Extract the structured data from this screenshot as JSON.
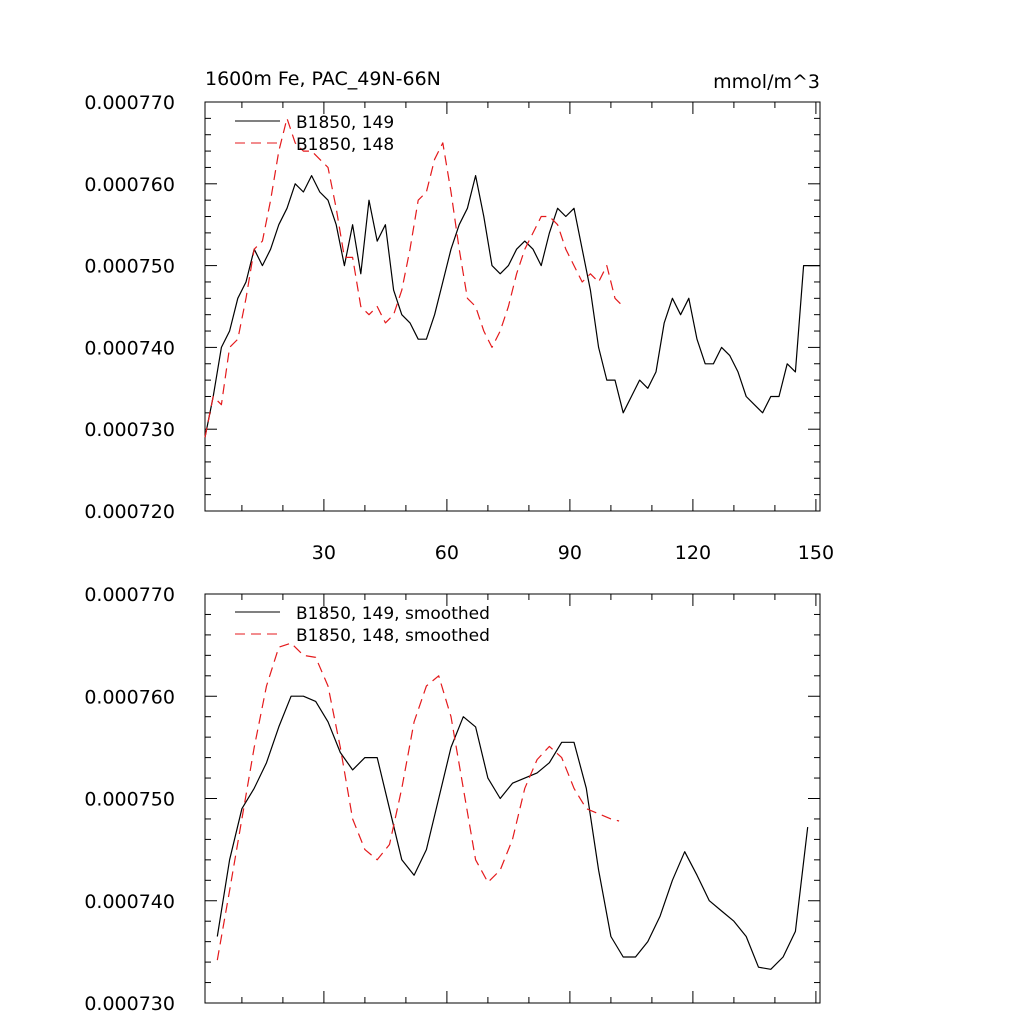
{
  "chart_data": [
    {
      "type": "line",
      "title": "1600m Fe, PAC_49N-66N",
      "units": "mmol/m^3",
      "ylim": [
        0.00072,
        0.00077
      ],
      "xlim": [
        1,
        151
      ],
      "yticks": [
        "0.000720",
        "0.000730",
        "0.000740",
        "0.000750",
        "0.000760",
        "0.000770"
      ],
      "xticks": [
        "30",
        "60",
        "90",
        "120",
        "150"
      ],
      "legend_position": "top-left",
      "series": [
        {
          "name": "B1850, 149",
          "color": "#000000",
          "dash": "solid",
          "x": [
            1,
            3,
            5,
            7,
            9,
            11,
            13,
            15,
            17,
            19,
            21,
            23,
            25,
            27,
            29,
            31,
            33,
            35,
            37,
            39,
            41,
            43,
            45,
            47,
            49,
            51,
            53,
            55,
            57,
            59,
            61,
            63,
            65,
            67,
            69,
            71,
            73,
            75,
            77,
            79,
            81,
            83,
            85,
            87,
            89,
            91,
            93,
            95,
            97,
            99,
            101,
            103,
            105,
            107,
            109,
            111,
            113,
            115,
            117,
            119,
            121,
            123,
            125,
            127,
            129,
            131,
            133,
            135,
            137,
            139,
            141,
            143,
            145,
            147,
            149,
            151
          ],
          "values": [
            0.000729,
            0.000734,
            0.00074,
            0.000742,
            0.000746,
            0.000748,
            0.000752,
            0.00075,
            0.000752,
            0.000755,
            0.000757,
            0.00076,
            0.000759,
            0.000761,
            0.000759,
            0.000758,
            0.000755,
            0.00075,
            0.000755,
            0.000749,
            0.000758,
            0.000753,
            0.000755,
            0.000747,
            0.000744,
            0.000743,
            0.000741,
            0.000741,
            0.000744,
            0.000748,
            0.000752,
            0.000755,
            0.000757,
            0.000761,
            0.000756,
            0.00075,
            0.000749,
            0.00075,
            0.000752,
            0.000753,
            0.000752,
            0.00075,
            0.000754,
            0.000757,
            0.000756,
            0.000757,
            0.000752,
            0.000747,
            0.00074,
            0.000736,
            0.000736,
            0.000732,
            0.000734,
            0.000736,
            0.000735,
            0.000737,
            0.000743,
            0.000746,
            0.000744,
            0.000746,
            0.000741,
            0.000738,
            0.000738,
            0.00074,
            0.000739,
            0.000737,
            0.000734,
            0.000733,
            0.000732,
            0.000734,
            0.000734,
            0.000738,
            0.000737,
            0.00075,
            0.00075,
            0.00075
          ]
        },
        {
          "name": "B1850, 148",
          "color": "#e41a1c",
          "dash": "10,6",
          "x": [
            1,
            3,
            5,
            7,
            9,
            11,
            13,
            15,
            17,
            19,
            21,
            23,
            25,
            27,
            29,
            31,
            33,
            35,
            37,
            39,
            41,
            43,
            45,
            47,
            49,
            51,
            53,
            55,
            57,
            59,
            61,
            63,
            65,
            67,
            69,
            71,
            73,
            75,
            77,
            79,
            81,
            83,
            85,
            87,
            89,
            91,
            93,
            95,
            97,
            99,
            101,
            103
          ],
          "values": [
            0.000729,
            0.000734,
            0.000733,
            0.00074,
            0.000741,
            0.000746,
            0.000752,
            0.000753,
            0.000758,
            0.000764,
            0.000768,
            0.000765,
            0.000764,
            0.000764,
            0.000763,
            0.000762,
            0.000757,
            0.000751,
            0.000751,
            0.000745,
            0.000744,
            0.000745,
            0.000743,
            0.000744,
            0.000747,
            0.000752,
            0.000758,
            0.000759,
            0.000763,
            0.000765,
            0.000759,
            0.000752,
            0.000746,
            0.000745,
            0.000742,
            0.00074,
            0.000742,
            0.000745,
            0.000749,
            0.000752,
            0.000754,
            0.000756,
            0.000756,
            0.000755,
            0.000752,
            0.00075,
            0.000748,
            0.000749,
            0.000748,
            0.00075,
            0.000746,
            0.000745
          ]
        }
      ]
    },
    {
      "type": "line",
      "title": "",
      "ylim": [
        0.00073,
        0.00077
      ],
      "xlim": [
        1,
        151
      ],
      "yticks": [
        "0.000730",
        "0.000740",
        "0.000750",
        "0.000760",
        "0.000770"
      ],
      "xticks": [],
      "legend_position": "top-left",
      "series": [
        {
          "name": "B1850, 149, smoothed",
          "color": "#000000",
          "dash": "solid",
          "x": [
            4,
            7,
            10,
            13,
            16,
            19,
            22,
            25,
            28,
            31,
            34,
            37,
            40,
            43,
            46,
            49,
            52,
            55,
            58,
            61,
            64,
            67,
            70,
            73,
            76,
            79,
            82,
            85,
            88,
            91,
            94,
            97,
            100,
            103,
            106,
            109,
            112,
            115,
            118,
            121,
            124,
            127,
            130,
            133,
            136,
            139,
            142,
            145,
            148
          ],
          "values": [
            0.0007365,
            0.000744,
            0.000749,
            0.000751,
            0.0007535,
            0.000757,
            0.00076,
            0.00076,
            0.0007595,
            0.0007575,
            0.0007545,
            0.0007528,
            0.000754,
            0.000754,
            0.000749,
            0.000744,
            0.0007425,
            0.000745,
            0.00075,
            0.000755,
            0.000758,
            0.000757,
            0.000752,
            0.00075,
            0.0007515,
            0.000752,
            0.0007525,
            0.0007535,
            0.0007555,
            0.0007555,
            0.000751,
            0.000743,
            0.0007365,
            0.0007345,
            0.0007345,
            0.000736,
            0.0007385,
            0.000742,
            0.0007448,
            0.0007425,
            0.00074,
            0.000739,
            0.000738,
            0.0007365,
            0.0007335,
            0.0007333,
            0.0007345,
            0.000737,
            0.0007472
          ]
        },
        {
          "name": "B1850, 148, smoothed",
          "color": "#e41a1c",
          "dash": "10,6",
          "x": [
            4,
            7,
            10,
            13,
            16,
            19,
            22,
            25,
            28,
            31,
            34,
            37,
            40,
            43,
            46,
            49,
            52,
            55,
            58,
            61,
            64,
            67,
            70,
            73,
            76,
            79,
            82,
            85,
            88,
            91,
            94,
            97,
            100,
            102
          ],
          "values": [
            0.0007342,
            0.000741,
            0.000748,
            0.000755,
            0.000761,
            0.0007648,
            0.0007652,
            0.000764,
            0.0007638,
            0.000761,
            0.000755,
            0.000748,
            0.000745,
            0.000744,
            0.0007455,
            0.000751,
            0.0007575,
            0.000761,
            0.000762,
            0.000758,
            0.000751,
            0.000744,
            0.0007418,
            0.000743,
            0.000746,
            0.000751,
            0.0007538,
            0.0007551,
            0.000754,
            0.000751,
            0.000749,
            0.0007485,
            0.000748,
            0.0007478
          ]
        }
      ]
    }
  ]
}
